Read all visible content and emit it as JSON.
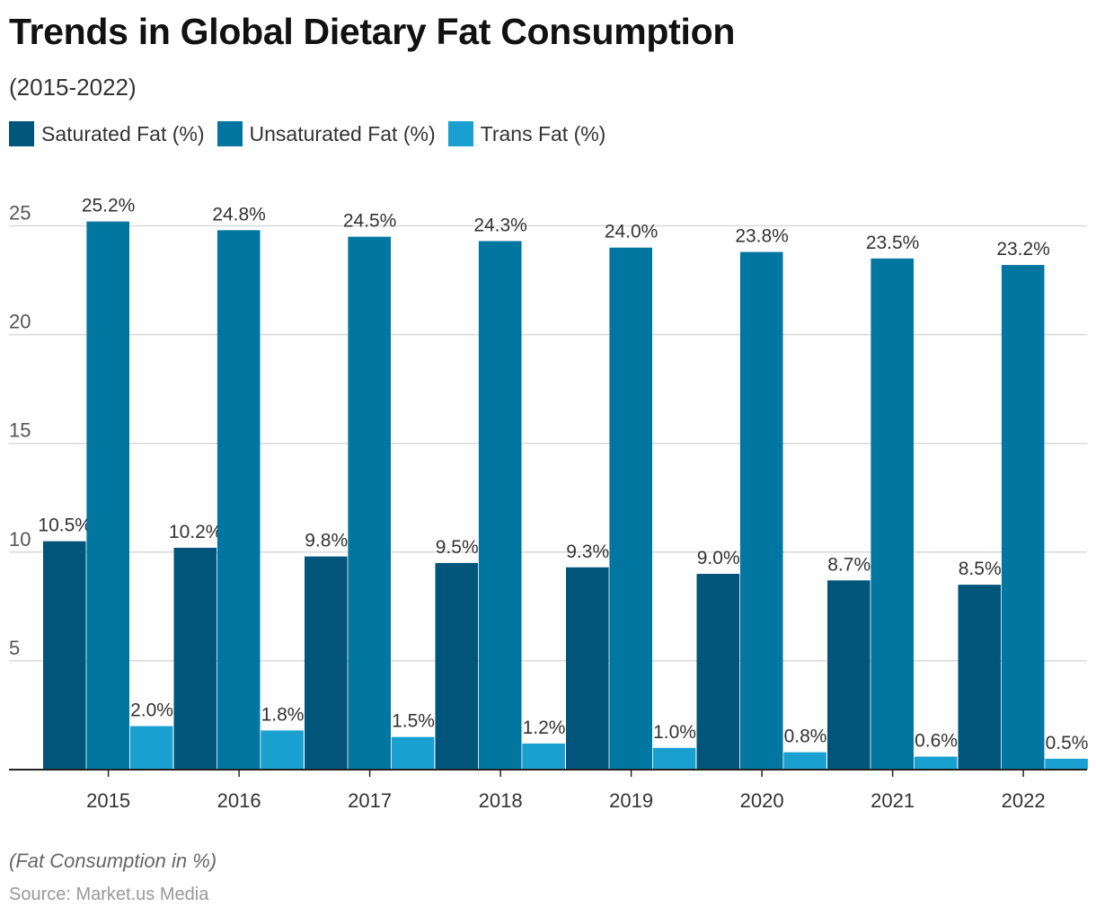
{
  "header": {
    "title": "Trends in Global Dietary Fat Consumption",
    "subtitle": "(2015-2022)"
  },
  "footer": {
    "axis_note": "(Fat Consumption in %)",
    "source": "Source: Market.us Media"
  },
  "colors": {
    "saturated": "#01547a",
    "unsaturated": "#0176a1",
    "trans": "#19a0d0",
    "grid": "#d9d9d9",
    "axis": "#222222"
  },
  "chart_data": {
    "type": "bar",
    "title": "Trends in Global Dietary Fat Consumption",
    "subtitle": "(2015-2022)",
    "categories": [
      "2015",
      "2016",
      "2017",
      "2018",
      "2019",
      "2020",
      "2021",
      "2022"
    ],
    "series": [
      {
        "name": "Saturated Fat (%)",
        "values": [
          10.5,
          10.2,
          9.8,
          9.5,
          9.3,
          9.0,
          8.7,
          8.5
        ]
      },
      {
        "name": "Unsaturated Fat (%)",
        "values": [
          25.2,
          24.8,
          24.5,
          24.3,
          24.0,
          23.8,
          23.5,
          23.2
        ]
      },
      {
        "name": "Trans Fat (%)",
        "values": [
          2.0,
          1.8,
          1.5,
          1.2,
          1.0,
          0.8,
          0.6,
          0.5
        ]
      }
    ],
    "data_labels": [
      [
        "10.5%",
        "10.2%",
        "9.8%",
        "9.5%",
        "9.3%",
        "9.0%",
        "8.7%",
        "8.5%"
      ],
      [
        "25.2%",
        "24.8%",
        "24.5%",
        "24.3%",
        "24.0%",
        "23.8%",
        "23.5%",
        "23.2%"
      ],
      [
        "2.0%",
        "1.8%",
        "1.5%",
        "1.2%",
        "1.0%",
        "0.8%",
        "0.6%",
        "0.5%"
      ]
    ],
    "y_ticks": [
      "5",
      "10",
      "15",
      "20",
      "25"
    ],
    "ylim": [
      0,
      25.2
    ],
    "xlabel": "",
    "ylabel": "",
    "grid": true,
    "legend_position": "top-left"
  }
}
